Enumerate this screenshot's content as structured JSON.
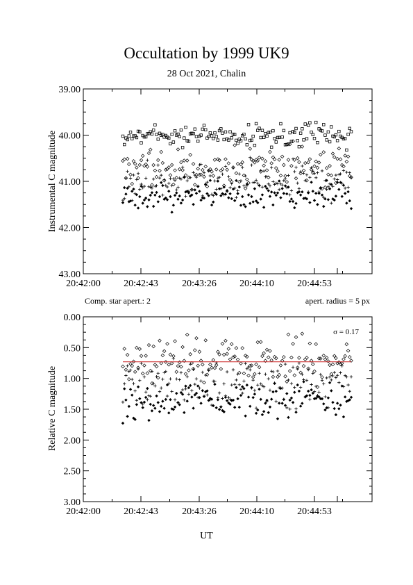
{
  "title": "Occultation by 1999 UK9",
  "subtitle": "28 Oct 2021, Chalin",
  "comp_label": "Comp. star apert.: 2",
  "apert_label": "apert. radius = 5 px",
  "sigma_label": "σ = 0.17",
  "xlabel": "UT",
  "colors": {
    "axis": "#000000",
    "mean_line": "#cc2222"
  },
  "chart_data": [
    {
      "type": "scatter",
      "title": "Occultation by 1999 UK9",
      "xlabel": "",
      "ylabel": "Instrumental C magnitude",
      "x_ticklabels": [
        "20:42:00",
        "20:42:43",
        "20:43:26",
        "20:44:10",
        "20:44:53"
      ],
      "y_ticklabels": [
        "39.00",
        "40.00",
        "41.00",
        "42.00",
        "43.00"
      ],
      "ylim": [
        43,
        39
      ],
      "grid": false,
      "series": [
        {
          "marker": "square",
          "y_center": 40.0,
          "y_spread": 0.12
        },
        {
          "marker": "diamond",
          "y_center": 40.7,
          "y_spread": 0.2
        },
        {
          "marker": "plus",
          "y_center": 41.0,
          "y_spread": 0.2
        },
        {
          "marker": "filled-diamond",
          "y_center": 41.3,
          "y_spread": 0.15
        }
      ]
    },
    {
      "type": "scatter",
      "xlabel": "UT",
      "ylabel": "Relative C magnitude",
      "x_ticklabels": [
        "20:42:00",
        "20:42:43",
        "20:43:26",
        "20:44:10",
        "20:44:53"
      ],
      "y_ticklabels": [
        "0.00",
        "0.50",
        "1.00",
        "1.50",
        "2.00",
        "2.50",
        "3.00"
      ],
      "ylim": [
        3,
        0
      ],
      "grid": false,
      "mean_line": 0.73,
      "sigma": 0.17,
      "series": [
        {
          "marker": "diamond",
          "y_center": 0.7,
          "y_spread": 0.17
        },
        {
          "marker": "plus",
          "y_center": 1.05,
          "y_spread": 0.2
        },
        {
          "marker": "filled-diamond",
          "y_center": 1.35,
          "y_spread": 0.15
        }
      ]
    }
  ]
}
